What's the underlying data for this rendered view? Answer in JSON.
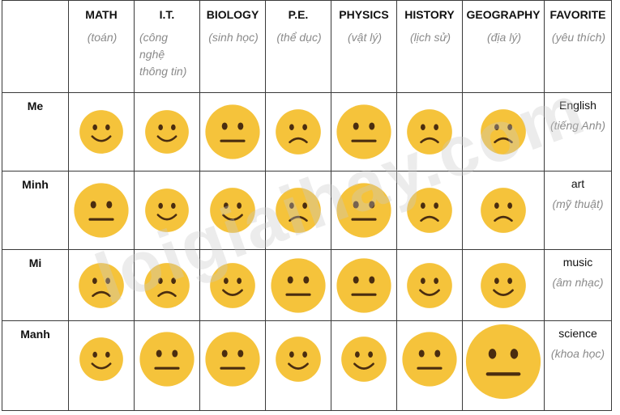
{
  "watermark": "loigiaihay.com",
  "subjects": [
    {
      "en": "MATH",
      "vi": "(toán)"
    },
    {
      "en": "I.T.",
      "vi": "(công nghệ thông tin)"
    },
    {
      "en": "BIOLOGY",
      "vi": "(sinh học)"
    },
    {
      "en": "P.E.",
      "vi": "(thể dục)"
    },
    {
      "en": "PHYSICS",
      "vi": "(vật lý)"
    },
    {
      "en": "HISTORY",
      "vi": "(lịch sử)"
    },
    {
      "en": "GEOGRAPHY",
      "vi": "(địa lý)"
    }
  ],
  "favorite_header": {
    "en": "FAVORITE",
    "vi": "(yêu thích)"
  },
  "rows": [
    {
      "name": "Me",
      "faces": [
        "happy-face-icon",
        "happy-face-icon",
        "neutral-face-icon",
        "sad-face-icon",
        "neutral-face-icon",
        "sad-face-icon",
        "sad-face-icon"
      ],
      "favorite_en": "English",
      "favorite_vi": "(tiếng Anh)"
    },
    {
      "name": "Minh",
      "faces": [
        "neutral-face-icon",
        "happy-face-icon",
        "happy-face-icon",
        "sad-face-icon",
        "neutral-face-icon",
        "sad-face-icon",
        "sad-face-icon"
      ],
      "favorite_en": "art",
      "favorite_vi": "(mỹ thuật)"
    },
    {
      "name": "Mi",
      "faces": [
        "sad-face-icon",
        "sad-face-icon",
        "happy-face-icon",
        "neutral-face-icon",
        "neutral-face-icon",
        "happy-face-icon",
        "happy-face-icon"
      ],
      "favorite_en": "music",
      "favorite_vi": "(âm nhạc)"
    },
    {
      "name": "Manh",
      "faces": [
        "happy-face-icon",
        "neutral-face-icon",
        "neutral-face-icon",
        "happy-face-icon",
        "happy-face-icon",
        "neutral-face-icon",
        "neutral-face-icon"
      ],
      "favorite_en": "science",
      "favorite_vi": "(khoa học)"
    }
  ],
  "colors": {
    "face": "#f5c33b",
    "feature": "#4a2d10",
    "header_vn": "#8a8a8a"
  }
}
